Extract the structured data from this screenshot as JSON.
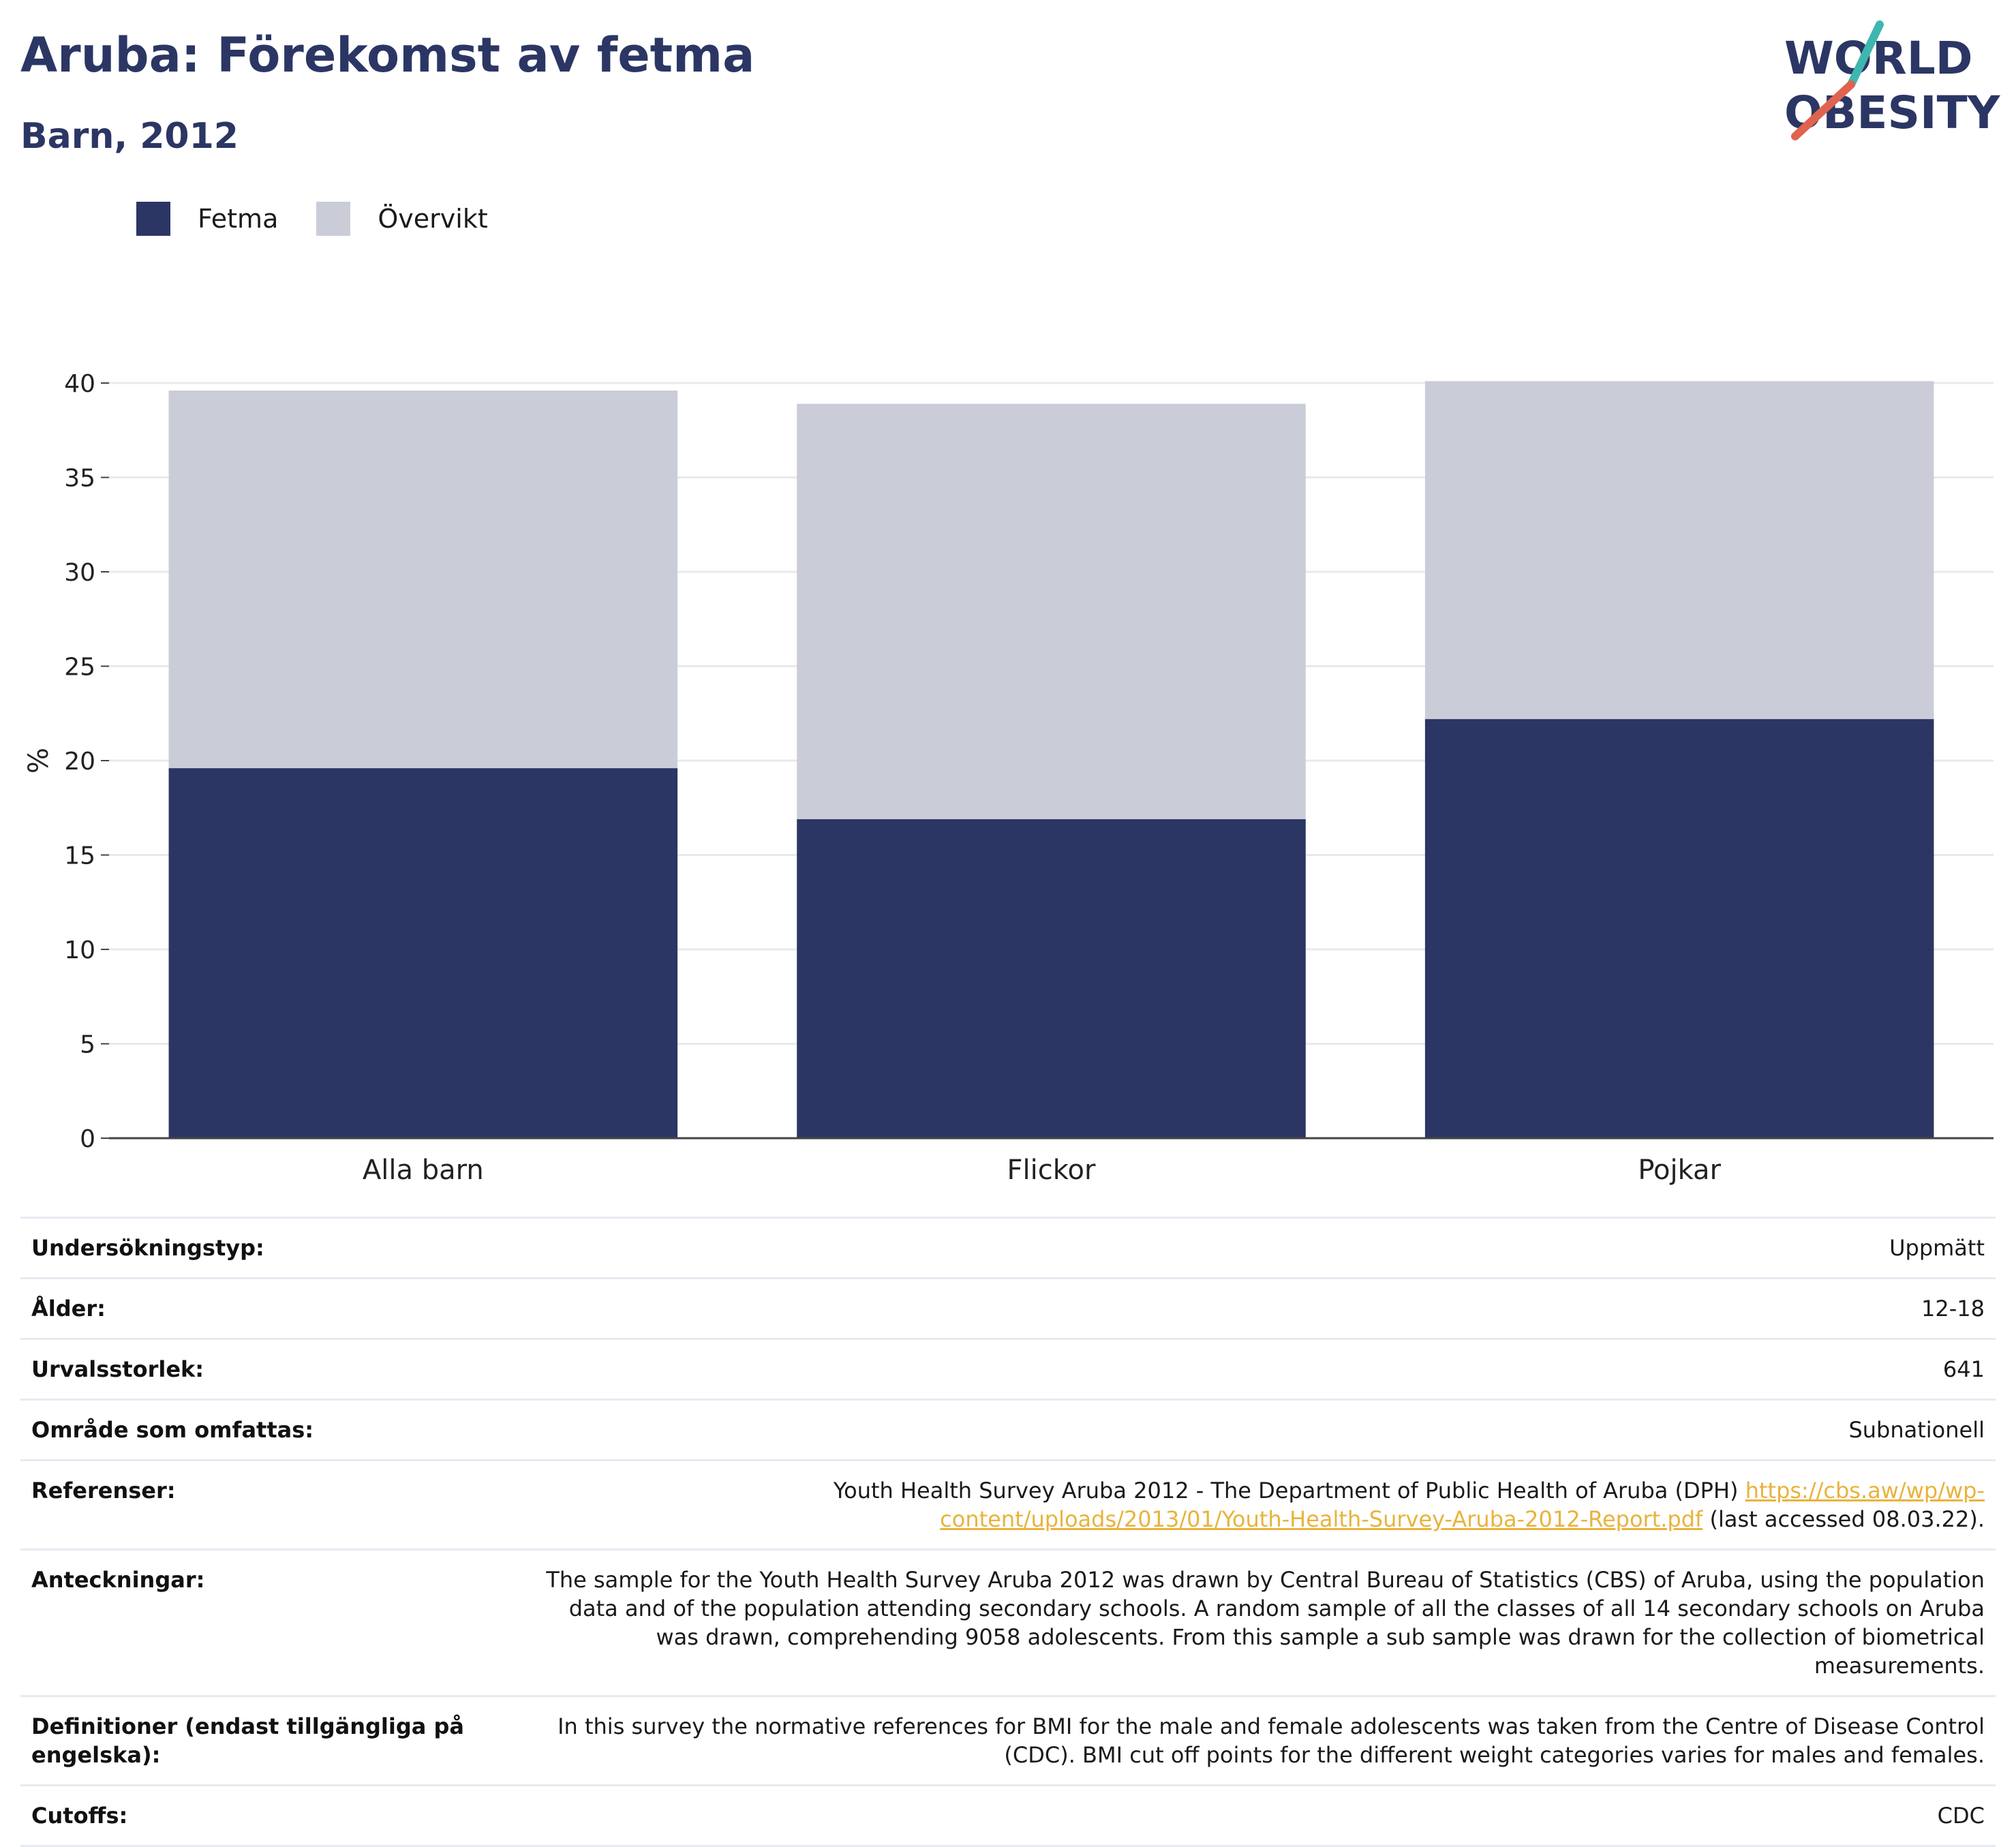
{
  "header": {
    "title": "Aruba: Förekomst av fetma",
    "subtitle": "Barn, 2012"
  },
  "logo": {
    "line1": "WORLD",
    "line2": "OBESITY",
    "colors": {
      "text": "#2b3664",
      "slash_teal": "#3fb6b0",
      "slash_red": "#e0634f"
    }
  },
  "legend": [
    {
      "label": "Fetma",
      "color": "#2b3664"
    },
    {
      "label": "Övervikt",
      "color": "#caccd8"
    }
  ],
  "chart_data": {
    "type": "bar",
    "stacked": true,
    "categories": [
      "Alla barn",
      "Flickor",
      "Pojkar"
    ],
    "series": [
      {
        "name": "Fetma",
        "values": [
          19.6,
          16.9,
          22.2
        ],
        "color": "#2b3664"
      },
      {
        "name": "Övervikt",
        "values": [
          20.0,
          22.0,
          17.9
        ],
        "color": "#caccd8"
      }
    ],
    "ylabel": "%",
    "ylim": [
      0,
      40
    ],
    "yticks": [
      0,
      5,
      10,
      15,
      20,
      25,
      30,
      35,
      40
    ],
    "grid": true,
    "legend_position": "top-left"
  },
  "details": {
    "survey_type": {
      "label": "Undersökningstyp:",
      "value": "Uppmätt"
    },
    "age": {
      "label": "Ålder:",
      "value": "12-18"
    },
    "sample_size": {
      "label": "Urvalsstorlek:",
      "value": "641"
    },
    "area": {
      "label": "Område som omfattas:",
      "value": "Subnationell"
    },
    "references": {
      "label": "Referenser:",
      "text": "Youth Health Survey Aruba 2012 - The Department of Public Health of Aruba (DPH)",
      "link": "https://cbs.aw/wp/wp-content/uploads/2013/01/Youth-Health-Survey-Aruba-2012-Report.pdf",
      "suffix": "(last accessed 08.03.22)."
    },
    "notes": {
      "label": "Anteckningar:",
      "value": "The sample for the Youth Health Survey Aruba 2012 was drawn by Central Bureau of Statistics (CBS) of Aruba, using the population data and of the population attending secondary schools. A random sample of all the classes of all 14 secondary schools on Aruba was drawn, comprehending 9058 adolescents. From this sample a sub sample was drawn for the collection of biometrical measurements."
    },
    "definitions": {
      "label": "Definitioner (endast tillgängliga på engelska):",
      "value": "In this survey the normative references for BMI for the male and female adolescents was taken from the Centre of Disease Control (CDC). BMI cut off points for the different weight categories varies for males and females."
    },
    "cutoffs": {
      "label": "Cutoffs:",
      "value": "CDC"
    }
  }
}
